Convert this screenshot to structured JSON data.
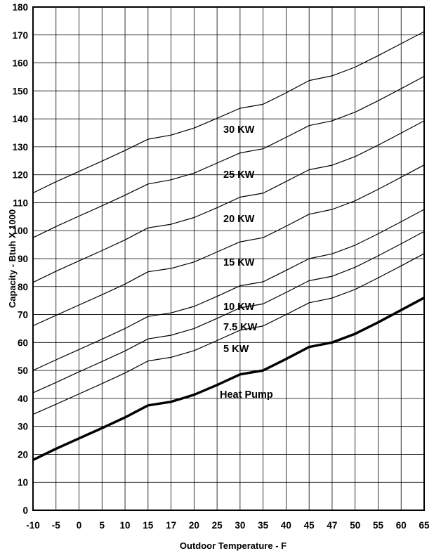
{
  "chart_data": {
    "type": "line",
    "title": "",
    "xlabel": "Outdoor Temperature - F",
    "ylabel": "Capacity - Btuh X 1000",
    "x": [
      -10,
      -5,
      0,
      5,
      10,
      15,
      17,
      20,
      25,
      30,
      35,
      40,
      45,
      47,
      50,
      55,
      60,
      65
    ],
    "x_tick_labels": [
      "-10",
      "-5",
      "0",
      "5",
      "10",
      "15",
      "17",
      "20",
      "25",
      "30",
      "35",
      "40",
      "45",
      "47",
      "50",
      "55",
      "60",
      "65"
    ],
    "ylim": [
      0,
      180
    ],
    "y_ticks": [
      0,
      10,
      20,
      30,
      40,
      50,
      60,
      70,
      80,
      90,
      100,
      110,
      120,
      130,
      140,
      150,
      160,
      170,
      180
    ],
    "grid": true,
    "legend": "none",
    "series": [
      {
        "name": "30 KW",
        "values": [
          113.5,
          117.5,
          121.2,
          124.9,
          128.7,
          132.7,
          134.2,
          136.7,
          140.2,
          143.8,
          145.2,
          149.3,
          153.7,
          155.4,
          158.5,
          162.6,
          166.9,
          171.2
        ]
      },
      {
        "name": "25 KW",
        "values": [
          97.5,
          101.5,
          105.2,
          108.9,
          112.7,
          116.7,
          118.2,
          120.6,
          124.2,
          127.8,
          129.3,
          133.4,
          137.6,
          139.3,
          142.4,
          146.5,
          150.8,
          155.2
        ]
      },
      {
        "name": "20 KW",
        "values": [
          81.5,
          85.5,
          89.2,
          92.9,
          96.7,
          101.0,
          102.3,
          104.7,
          108.2,
          112.0,
          113.4,
          117.6,
          121.8,
          123.4,
          126.5,
          130.6,
          134.9,
          139.3
        ]
      },
      {
        "name": "15 KW",
        "values": [
          66.0,
          69.7,
          73.4,
          77.1,
          80.9,
          85.3,
          86.5,
          88.8,
          92.4,
          96.0,
          97.5,
          101.6,
          105.9,
          107.6,
          110.7,
          114.8,
          119.1,
          123.5
        ]
      },
      {
        "name": "10 KW",
        "values": [
          50.0,
          53.8,
          57.5,
          61.2,
          65.0,
          69.3,
          70.6,
          72.9,
          76.5,
          80.3,
          81.7,
          85.8,
          90.0,
          91.7,
          94.8,
          98.9,
          103.2,
          107.6
        ]
      },
      {
        "name": "7.5 KW",
        "values": [
          42.0,
          45.7,
          49.5,
          53.2,
          57.0,
          61.3,
          62.6,
          65.0,
          68.6,
          72.4,
          73.8,
          77.9,
          82.1,
          83.7,
          86.9,
          91.0,
          95.3,
          99.7
        ]
      },
      {
        "name": "5 KW",
        "values": [
          34.3,
          37.9,
          41.6,
          45.3,
          49.1,
          53.4,
          54.7,
          57.1,
          60.7,
          64.4,
          65.9,
          70.0,
          74.2,
          75.9,
          79.0,
          83.1,
          87.4,
          91.8
        ]
      },
      {
        "name": "Heat Pump",
        "values": [
          18.0,
          22.0,
          25.7,
          29.4,
          33.2,
          37.5,
          38.8,
          41.3,
          44.8,
          48.6,
          50.0,
          54.1,
          58.4,
          60.0,
          63.1,
          67.2,
          71.6,
          76.0
        ]
      }
    ]
  }
}
